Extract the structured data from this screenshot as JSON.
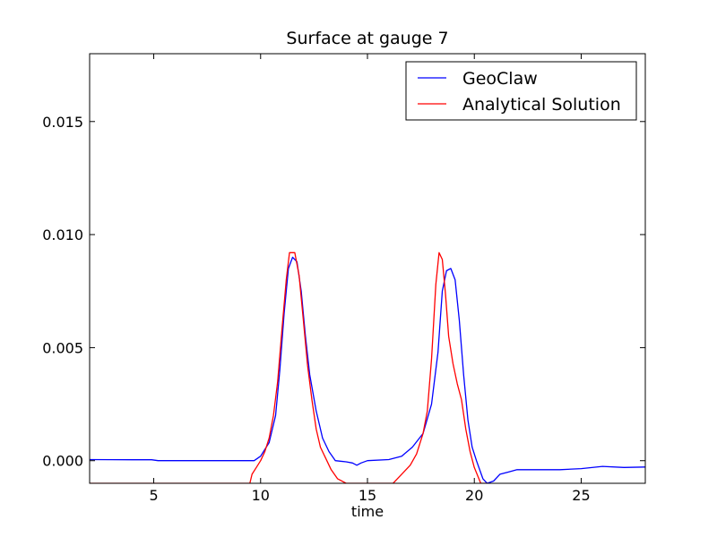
{
  "chart_data": {
    "type": "line",
    "title": "Surface at gauge 7",
    "xlabel": "time",
    "ylabel": "",
    "xlim": [
      2,
      28
    ],
    "ylim": [
      -0.001,
      0.018
    ],
    "xticks": [
      5,
      10,
      15,
      20,
      25
    ],
    "xtick_labels": [
      "5",
      "10",
      "15",
      "20",
      "25"
    ],
    "yticks": [
      0.0,
      0.005,
      0.01,
      0.015
    ],
    "ytick_labels": [
      "0.000",
      "0.005",
      "0.010",
      "0.015"
    ],
    "grid": false,
    "legend_position": "top-right",
    "series": [
      {
        "name": "GeoClaw",
        "color": "#0000ff",
        "points": [
          [
            2.0,
            5e-05
          ],
          [
            4.0,
            4e-05
          ],
          [
            4.9,
            4e-05
          ],
          [
            5.2,
            0.0
          ],
          [
            7.0,
            0.0
          ],
          [
            9.0,
            0.0
          ],
          [
            9.7,
            0.0
          ],
          [
            10.0,
            0.0002
          ],
          [
            10.4,
            0.0008
          ],
          [
            10.7,
            0.002
          ],
          [
            10.9,
            0.004
          ],
          [
            11.1,
            0.0065
          ],
          [
            11.3,
            0.0085
          ],
          [
            11.5,
            0.009
          ],
          [
            11.7,
            0.0088
          ],
          [
            11.9,
            0.0075
          ],
          [
            12.1,
            0.0055
          ],
          [
            12.3,
            0.0038
          ],
          [
            12.6,
            0.0022
          ],
          [
            12.9,
            0.001
          ],
          [
            13.2,
            0.0004
          ],
          [
            13.5,
            0.0
          ],
          [
            14.0,
            -5e-05
          ],
          [
            14.3,
            -0.0001
          ],
          [
            14.5,
            -0.0002
          ],
          [
            14.7,
            -0.0001
          ],
          [
            15.0,
            0.0
          ],
          [
            16.0,
            5e-05
          ],
          [
            16.6,
            0.0002
          ],
          [
            17.1,
            0.0006
          ],
          [
            17.6,
            0.0012
          ],
          [
            18.0,
            0.0025
          ],
          [
            18.3,
            0.0048
          ],
          [
            18.5,
            0.0075
          ],
          [
            18.7,
            0.0084
          ],
          [
            18.9,
            0.0085
          ],
          [
            19.1,
            0.008
          ],
          [
            19.3,
            0.0062
          ],
          [
            19.5,
            0.0038
          ],
          [
            19.7,
            0.0018
          ],
          [
            19.9,
            0.0006
          ],
          [
            20.1,
            0.0
          ],
          [
            20.4,
            -0.0008
          ],
          [
            20.6,
            -0.001
          ],
          [
            20.9,
            -0.0009
          ],
          [
            21.2,
            -0.0006
          ],
          [
            21.6,
            -0.0005
          ],
          [
            22.0,
            -0.0004
          ],
          [
            23.0,
            -0.0004
          ],
          [
            24.0,
            -0.0004
          ],
          [
            25.0,
            -0.00035
          ],
          [
            26.0,
            -0.00025
          ],
          [
            27.0,
            -0.0003
          ],
          [
            28.0,
            -0.00028
          ]
        ]
      },
      {
        "name": "Analytical Solution",
        "color": "#ff0000",
        "points": [
          [
            2.0,
            -0.001
          ],
          [
            9.5,
            -0.001
          ],
          [
            9.6,
            -0.0006
          ],
          [
            9.8,
            -0.0003
          ],
          [
            10.0,
            0.0
          ],
          [
            10.2,
            0.0004
          ],
          [
            10.4,
            0.001
          ],
          [
            10.6,
            0.002
          ],
          [
            10.8,
            0.0035
          ],
          [
            11.0,
            0.0058
          ],
          [
            11.2,
            0.008
          ],
          [
            11.35,
            0.0092
          ],
          [
            11.6,
            0.0092
          ],
          [
            11.8,
            0.0082
          ],
          [
            12.0,
            0.0062
          ],
          [
            12.2,
            0.0042
          ],
          [
            12.4,
            0.0027
          ],
          [
            12.6,
            0.0014
          ],
          [
            12.8,
            0.0006
          ],
          [
            13.0,
            0.0002
          ],
          [
            13.3,
            -0.0004
          ],
          [
            13.6,
            -0.0008
          ],
          [
            14.0,
            -0.001
          ],
          [
            14.4,
            -0.001
          ],
          [
            16.2,
            -0.001
          ],
          [
            16.4,
            -0.0008
          ],
          [
            16.7,
            -0.0005
          ],
          [
            17.0,
            -0.0002
          ],
          [
            17.3,
            0.0003
          ],
          [
            17.6,
            0.0012
          ],
          [
            17.8,
            0.0022
          ],
          [
            18.0,
            0.0045
          ],
          [
            18.2,
            0.0078
          ],
          [
            18.35,
            0.0092
          ],
          [
            18.5,
            0.0089
          ],
          [
            18.65,
            0.0074
          ],
          [
            18.8,
            0.0055
          ],
          [
            19.0,
            0.0043
          ],
          [
            19.2,
            0.0034
          ],
          [
            19.4,
            0.0027
          ],
          [
            19.6,
            0.0014
          ],
          [
            19.8,
            0.0004
          ],
          [
            20.0,
            -0.0003
          ],
          [
            20.3,
            -0.001
          ],
          [
            20.6,
            -0.001
          ]
        ]
      }
    ]
  }
}
